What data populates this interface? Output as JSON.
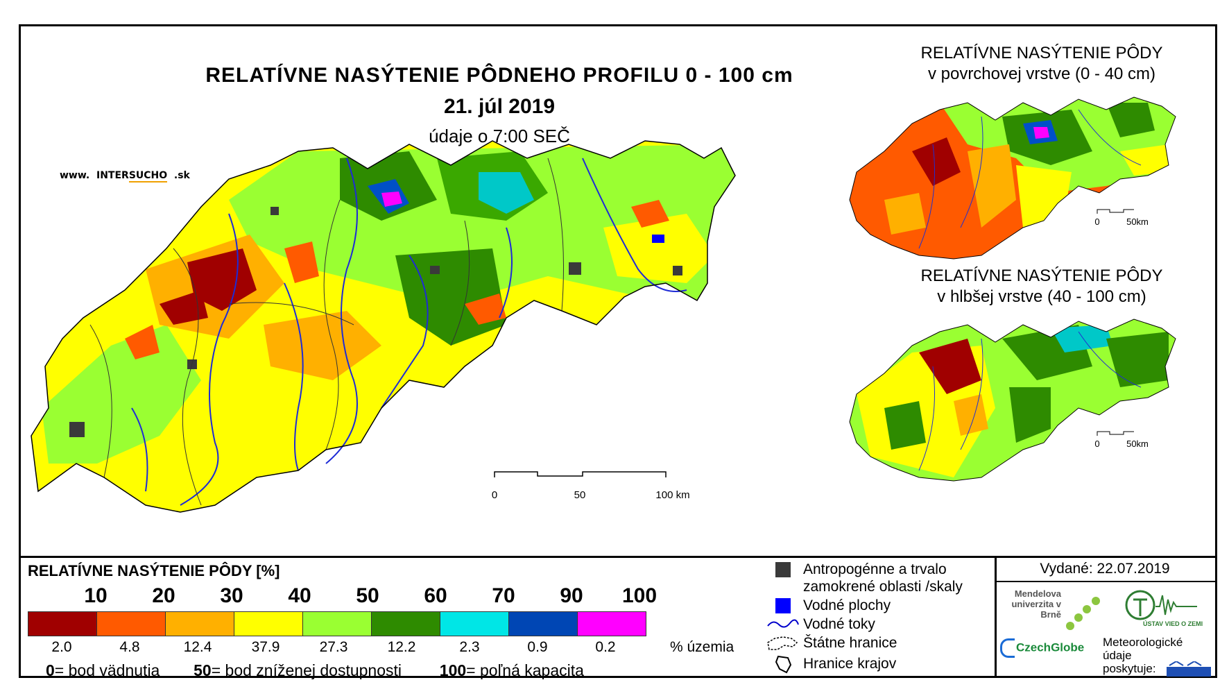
{
  "titles": {
    "main": "RELATÍVNE NASÝTENIE PÔDNEHO PROFILU 0 - 100 cm",
    "date": "21. júl 2019",
    "time_note": "údaje o 7:00 SEČ",
    "inset_top_line1": "RELATÍVNE NASÝTENIE PÔDY",
    "inset_top_line2": "v povrchovej vrstve (0 - 40 cm)",
    "inset_bottom_line1": "RELATÍVNE NASÝTENIE PÔDY",
    "inset_bottom_line2": "v hlbšej vrstve (40 - 100 cm)"
  },
  "website": {
    "prefix": "www.",
    "name_a": "INTER",
    "name_b": "SUCHO",
    "suffix": ".sk"
  },
  "scale_main": {
    "labels": [
      "0",
      "50",
      "100 km"
    ]
  },
  "scale_inset": {
    "labels": [
      "0",
      "50km"
    ]
  },
  "legend": {
    "title": "RELATÍVNE NASÝTENIE PÔDY [%]",
    "thresholds": [
      "10",
      "20",
      "30",
      "40",
      "50",
      "60",
      "70",
      "90",
      "100"
    ],
    "classes": [
      {
        "color": "#a00000",
        "share": "2.0"
      },
      {
        "color": "#ff5a00",
        "share": "4.8"
      },
      {
        "color": "#ffb000",
        "share": "12.4"
      },
      {
        "color": "#ffff00",
        "share": "37.9"
      },
      {
        "color": "#9aff32",
        "share": "27.3"
      },
      {
        "color": "#2e8b00",
        "share": "12.2"
      },
      {
        "color": "#00e6e6",
        "share": "2.3"
      },
      {
        "color": "#0046b4",
        "share": "0.9"
      },
      {
        "color": "#ff00ff",
        "share": "0.2"
      }
    ],
    "share_unit": "% územia",
    "notes": [
      {
        "value": "0",
        "text": "= bod vädnutia"
      },
      {
        "value": "50",
        "text": "= bod zníženej dostupnosti"
      },
      {
        "value": "100",
        "text": "= poľná kapacita"
      }
    ]
  },
  "symbols": [
    {
      "icon": "square-dark-icon",
      "color": "#3a3a3a",
      "label_line1": "Antropogénne a trvalo",
      "label_line2": "zamokrené oblasti /skaly"
    },
    {
      "icon": "square-blue-icon",
      "color": "#0000ff",
      "label_line1": "Vodné plochy"
    },
    {
      "icon": "river-line-icon",
      "color": "#0000cc",
      "label_line1": "Vodné toky"
    },
    {
      "icon": "border-outline-icon",
      "color": "#000000",
      "label_line1": "Štátne hranice"
    },
    {
      "icon": "region-outline-icon",
      "color": "#000000",
      "label_line1": "Hranice krajov"
    }
  ],
  "issued": "Vydané: 22.07.2019",
  "logos": {
    "mendel": "Mendelova univerzita v Brně",
    "czechglobe": "CzechGlobe",
    "uvgz": "ÚSTAV VIED O ZEMI",
    "meteo_line1": "Meteorologické",
    "meteo_line2": "údaje",
    "meteo_line3": "poskytuje:"
  }
}
